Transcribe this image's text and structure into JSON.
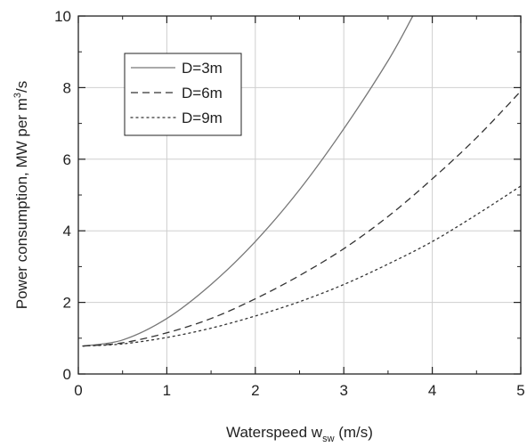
{
  "chart_data": {
    "type": "line",
    "xlabel": {
      "main": "Waterspeed w",
      "sub": "sw",
      "rest": " (m/s)"
    },
    "ylabel": {
      "main": "Power consumption, MW per m",
      "sup": "3",
      "rest": "/s"
    },
    "xlim": [
      0,
      5
    ],
    "ylim": [
      0,
      10
    ],
    "xticks": [
      0,
      1,
      2,
      3,
      4,
      5
    ],
    "yticks": [
      0,
      2,
      4,
      6,
      8,
      10
    ],
    "grid": true,
    "legend_position": "top-left",
    "series": [
      {
        "name": "D=3m",
        "style": "solid",
        "color": "#777777",
        "x": [
          0.05,
          0.5,
          1.0,
          1.5,
          2.0,
          2.5,
          3.0,
          3.5,
          3.78
        ],
        "y": [
          0.78,
          0.95,
          1.55,
          2.5,
          3.7,
          5.15,
          6.85,
          8.75,
          10.0
        ]
      },
      {
        "name": "D=6m",
        "style": "dashed",
        "color": "#333333",
        "x": [
          0.05,
          0.5,
          1.0,
          1.5,
          2.0,
          2.5,
          3.0,
          3.5,
          4.0,
          4.5,
          5.0
        ],
        "y": [
          0.78,
          0.87,
          1.15,
          1.55,
          2.1,
          2.75,
          3.5,
          4.4,
          5.45,
          6.6,
          7.9
        ]
      },
      {
        "name": "D=9m",
        "style": "dotted",
        "color": "#333333",
        "x": [
          0.05,
          0.5,
          1.0,
          1.5,
          2.0,
          2.5,
          3.0,
          3.5,
          4.0,
          4.5,
          5.0
        ],
        "y": [
          0.78,
          0.84,
          1.02,
          1.28,
          1.62,
          2.02,
          2.5,
          3.07,
          3.7,
          4.45,
          5.25
        ]
      }
    ]
  }
}
